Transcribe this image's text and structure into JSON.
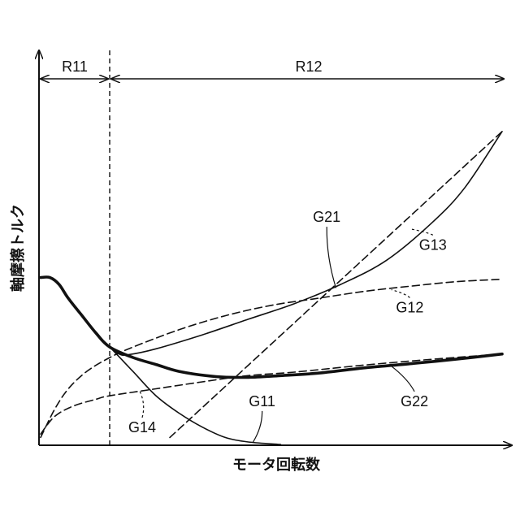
{
  "chart_data": {
    "type": "line",
    "xlabel": "モータ回転数",
    "ylabel": "軸摩擦トルク",
    "x_range": [
      0,
      100
    ],
    "y_range": [
      0,
      100
    ],
    "regions": [
      {
        "label": "R11",
        "x_start": 0,
        "x_end": 15
      },
      {
        "label": "R12",
        "x_start": 15,
        "x_end": 100
      }
    ],
    "series": [
      {
        "name": "G11",
        "style": "solid",
        "weight": "thin",
        "points": [
          [
            0,
            48
          ],
          [
            2,
            48
          ],
          [
            4,
            46
          ],
          [
            6,
            42
          ],
          [
            9,
            37
          ],
          [
            12,
            32
          ],
          [
            15,
            28
          ],
          [
            20,
            21
          ],
          [
            25,
            14
          ],
          [
            30,
            9
          ],
          [
            35,
            5
          ],
          [
            40,
            2
          ],
          [
            45,
            0.7
          ],
          [
            52,
            0
          ]
        ]
      },
      {
        "name": "G12",
        "style": "dashed",
        "weight": "thin",
        "points": [
          [
            0,
            2
          ],
          [
            3,
            10
          ],
          [
            6,
            16
          ],
          [
            10,
            21
          ],
          [
            15,
            25
          ],
          [
            20,
            28
          ],
          [
            30,
            33
          ],
          [
            40,
            37
          ],
          [
            50,
            40
          ],
          [
            60,
            42
          ],
          [
            70,
            44
          ],
          [
            80,
            45.5
          ],
          [
            90,
            46.8
          ],
          [
            100,
            47.5
          ]
        ]
      },
      {
        "name": "G13",
        "style": "dashed",
        "weight": "thin",
        "points": [
          [
            28,
            2
          ],
          [
            100,
            90
          ]
        ]
      },
      {
        "name": "G14",
        "style": "dashed",
        "weight": "thin",
        "points": [
          [
            0,
            3
          ],
          [
            3,
            8
          ],
          [
            7,
            11
          ],
          [
            12,
            13
          ],
          [
            15,
            14
          ],
          [
            25,
            16
          ],
          [
            35,
            18
          ],
          [
            45,
            19.8
          ],
          [
            55,
            20.8
          ],
          [
            70,
            22.8
          ],
          [
            85,
            24.5
          ],
          [
            100,
            26
          ]
        ]
      },
      {
        "name": "G21",
        "style": "solid",
        "weight": "thin",
        "points": [
          [
            0,
            48
          ],
          [
            2,
            48
          ],
          [
            4,
            46
          ],
          [
            6,
            42
          ],
          [
            9,
            37
          ],
          [
            12,
            32
          ],
          [
            15,
            28
          ],
          [
            17,
            26
          ],
          [
            19,
            25.8
          ],
          [
            25,
            27.5
          ],
          [
            35,
            31.5
          ],
          [
            45,
            36
          ],
          [
            55,
            40.5
          ],
          [
            65,
            46
          ],
          [
            75,
            53
          ],
          [
            85,
            64
          ],
          [
            92,
            74
          ],
          [
            100,
            90
          ]
        ]
      },
      {
        "name": "G22",
        "style": "solid",
        "weight": "thick",
        "points": [
          [
            0,
            48
          ],
          [
            2,
            48
          ],
          [
            4,
            46
          ],
          [
            6,
            42
          ],
          [
            9,
            37
          ],
          [
            12,
            32
          ],
          [
            15,
            28
          ],
          [
            20,
            25
          ],
          [
            25,
            23
          ],
          [
            30,
            21
          ],
          [
            38,
            19.5
          ],
          [
            45,
            19.3
          ],
          [
            52,
            19.8
          ],
          [
            60,
            20.5
          ],
          [
            70,
            22
          ],
          [
            80,
            23.2
          ],
          [
            90,
            24.5
          ],
          [
            100,
            26
          ]
        ]
      }
    ],
    "annotations": [
      {
        "text": "G21",
        "x": 62,
        "y": 64,
        "target": [
          64,
          45
        ]
      },
      {
        "text": "G13",
        "x": 85,
        "y": 56,
        "target": [
          80,
          62
        ]
      },
      {
        "text": "G12",
        "x": 80,
        "y": 38,
        "target": [
          76,
          44.5
        ]
      },
      {
        "text": "G22",
        "x": 81,
        "y": 11,
        "target": [
          76,
          22.5
        ]
      },
      {
        "text": "G11",
        "x": 48,
        "y": 11,
        "target": [
          46,
          0.6
        ]
      },
      {
        "text": "G14",
        "x": 22,
        "y": 3.5,
        "target": [
          21.5,
          15.3
        ]
      }
    ],
    "grid": false,
    "legend": "none"
  }
}
